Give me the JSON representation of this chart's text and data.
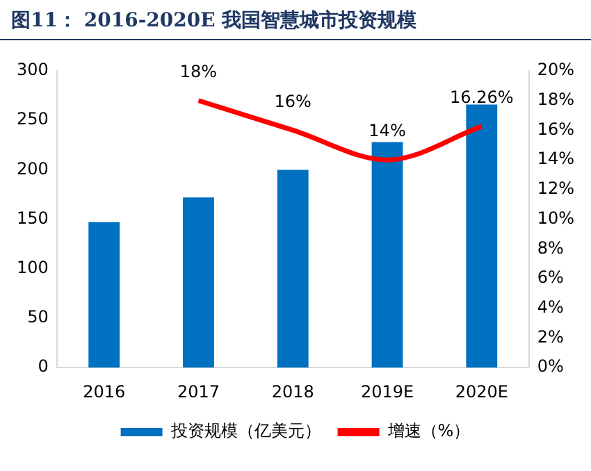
{
  "chart_data": {
    "type": "bar",
    "title": "图11： 2016-2020E 我国智慧城市投资规模",
    "categories": [
      "2016",
      "2017",
      "2018",
      "2019E",
      "2020E"
    ],
    "series": [
      {
        "name": "投资规模（亿美元）",
        "color": "#0070c0",
        "values": [
          147,
          172,
          200,
          228,
          266
        ]
      },
      {
        "name": "增速（%）",
        "type": "line",
        "axis": "y2",
        "color": "#ff0000",
        "values": [
          null,
          18,
          16,
          14,
          16.26
        ],
        "value_labels": [
          null,
          "18%",
          "16%",
          "14%",
          "16.26%"
        ]
      }
    ],
    "ylim": [
      0,
      300
    ],
    "yticks": [
      0,
      50,
      100,
      150,
      200,
      250,
      300
    ],
    "y2lim": [
      0,
      20
    ],
    "y2ticks": [
      {
        "value": 0,
        "label": "0%"
      },
      {
        "value": 2,
        "label": "2%"
      },
      {
        "value": 4,
        "label": "4%"
      },
      {
        "value": 6,
        "label": "6%"
      },
      {
        "value": 8,
        "label": "8%"
      },
      {
        "value": 10,
        "label": "10%"
      },
      {
        "value": 12,
        "label": "12%"
      },
      {
        "value": 14,
        "label": "14%"
      },
      {
        "value": 16,
        "label": "16%"
      },
      {
        "value": 18,
        "label": "18%"
      },
      {
        "value": 20,
        "label": "20%"
      }
    ],
    "legend": "bottom",
    "grid": false,
    "marker": "none"
  }
}
